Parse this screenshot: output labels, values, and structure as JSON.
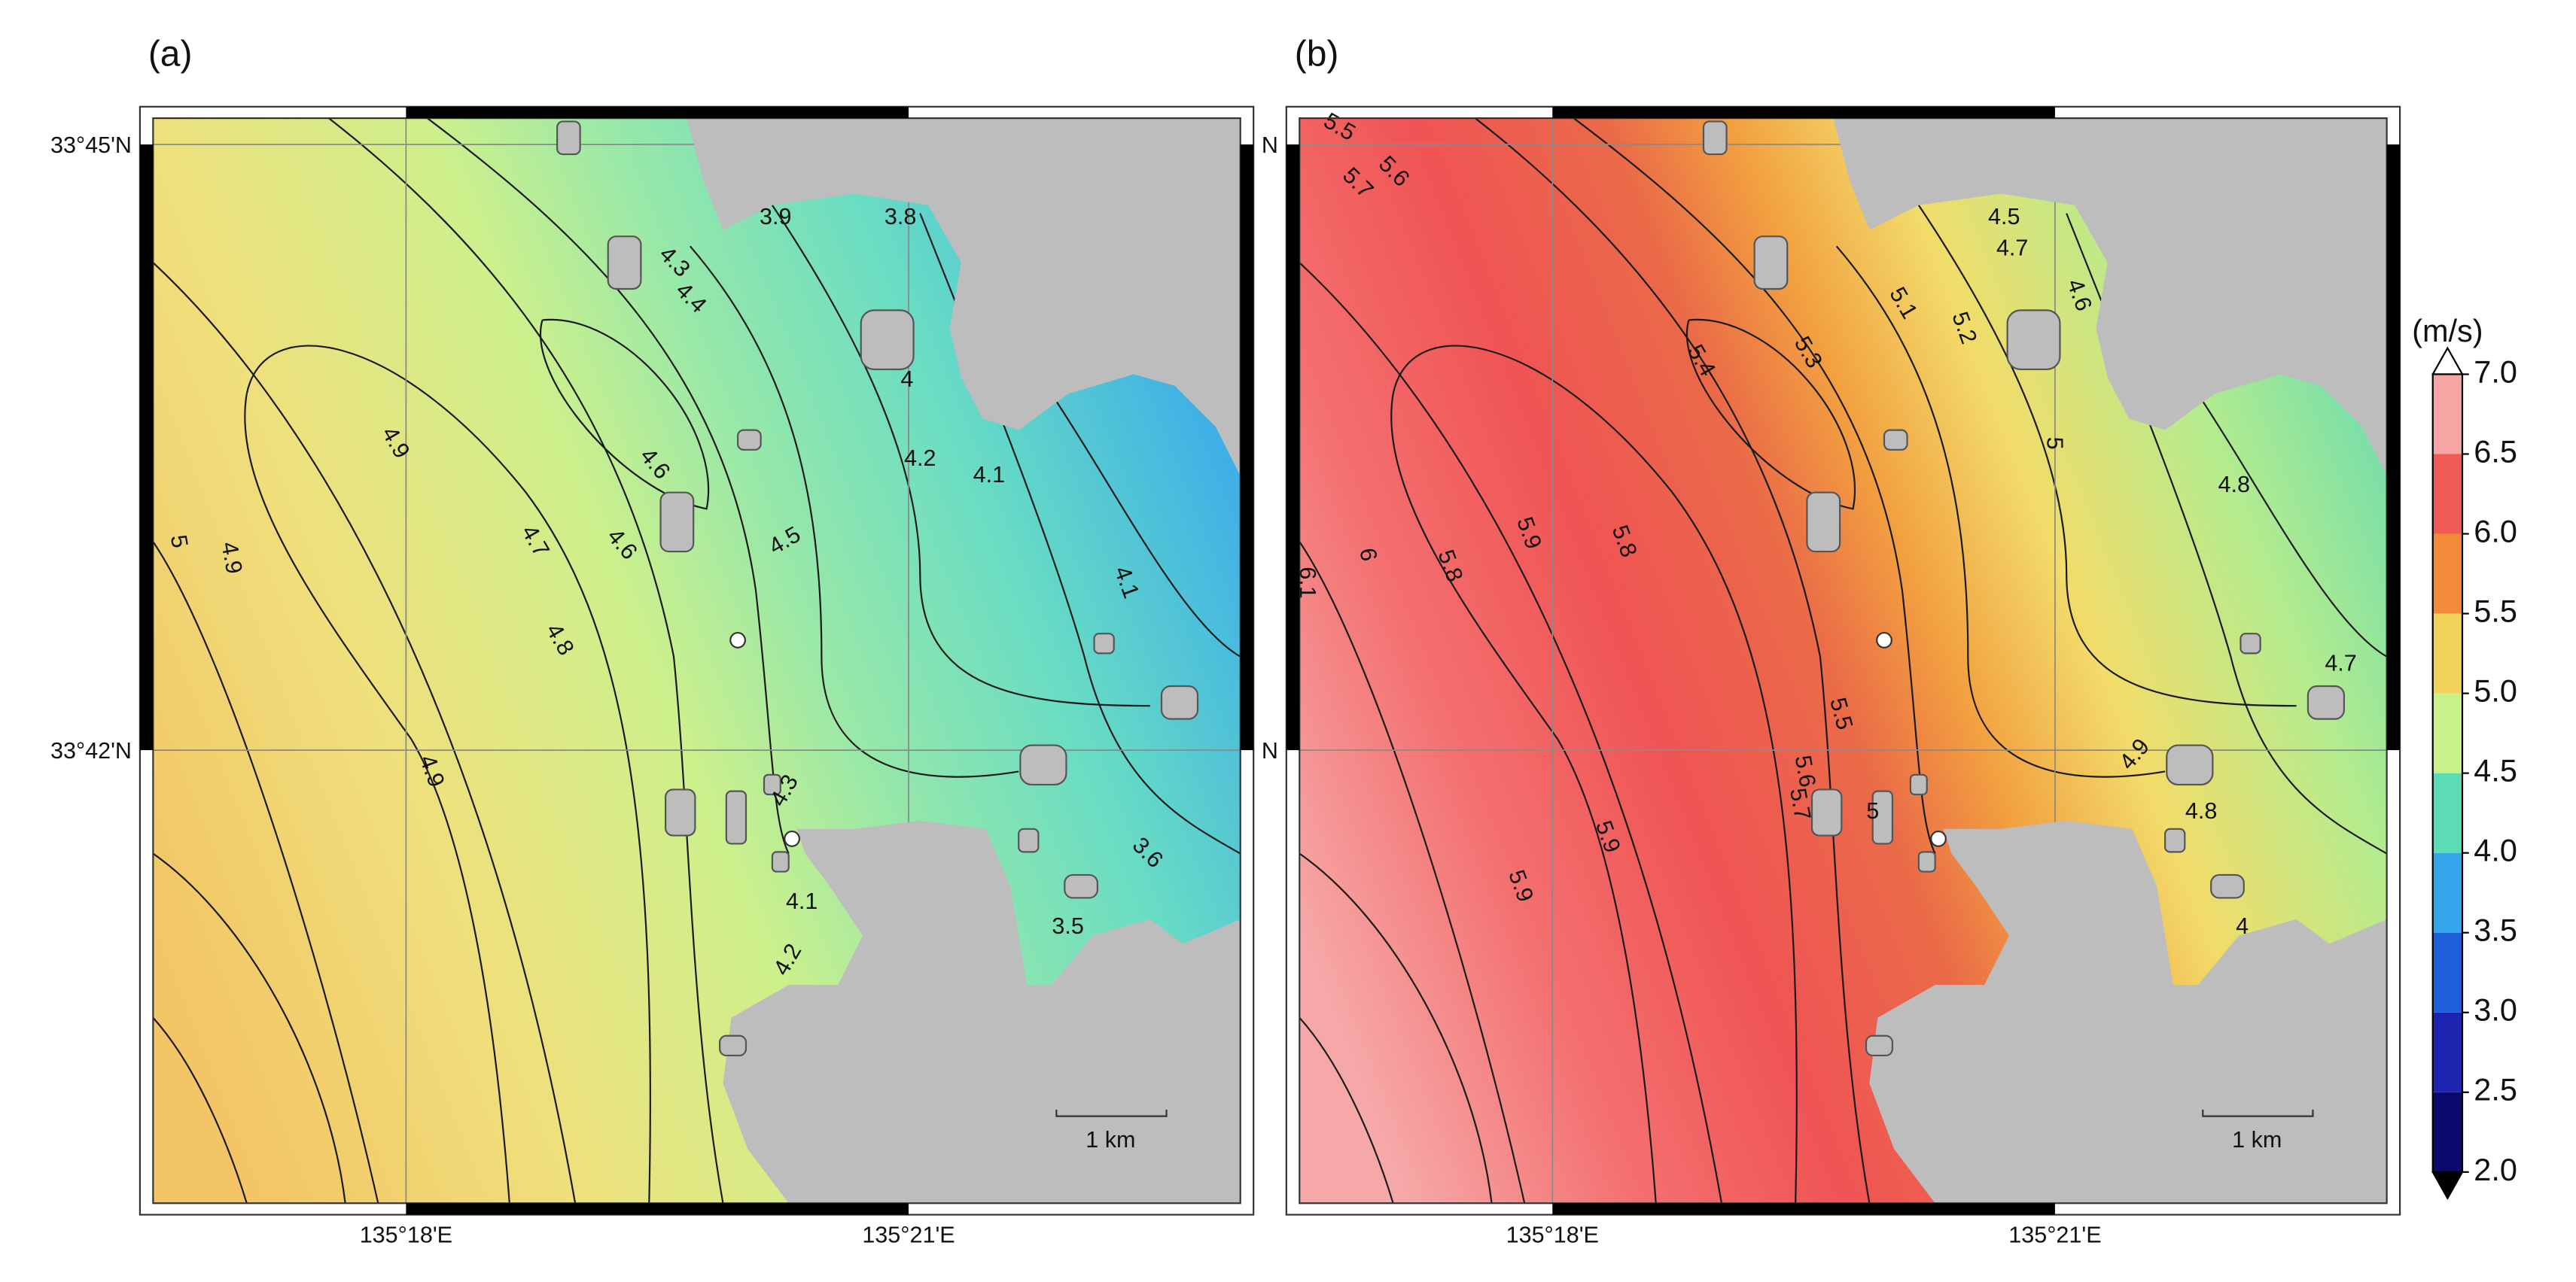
{
  "panels": [
    {
      "label": "(a)",
      "lat_labels": [
        "33°45'N",
        "33°42'N"
      ],
      "lon_labels": [
        "135°18'E",
        "135°21'E"
      ],
      "contour_labels": [
        "3.9",
        "3.8",
        "4.3",
        "4.4",
        "4",
        "4.9",
        "4.6",
        "4.2",
        "4.1",
        "5",
        "4.9",
        "4.7",
        "4.6",
        "4.5",
        "4.1",
        "4.8",
        "4.9",
        "4.3",
        "4.1",
        "4.2",
        "3.5",
        "3.6"
      ],
      "scale_bar": "1 km"
    },
    {
      "label": "(b)",
      "lat_labels": [
        "N",
        "N"
      ],
      "lon_labels": [
        "135°18'E",
        "135°21'E"
      ],
      "contour_labels": [
        "5.5",
        "5.6",
        "5.7",
        "4.5",
        "4.7",
        "4.6",
        "5.1",
        "5.2",
        "5.3",
        "5.4",
        "5",
        "4.8",
        "6.1",
        "6",
        "5.8",
        "5.9",
        "5.8",
        "5.5",
        "4.9",
        "4.7",
        "5.6",
        "5.7",
        "5.9",
        "5.9",
        "4.8",
        "5",
        "4"
      ],
      "scale_bar": "1 km"
    }
  ],
  "colorbar": {
    "title": "(m/s)",
    "lim": [
      2,
      7
    ],
    "ticks": [
      {
        "value": 2,
        "label": "2.0"
      },
      {
        "value": 2.5,
        "label": "2.5"
      },
      {
        "value": 3,
        "label": "3.0"
      },
      {
        "value": 3.5,
        "label": "3.5"
      },
      {
        "value": 4,
        "label": "4.0"
      },
      {
        "value": 4.5,
        "label": "4.5"
      },
      {
        "value": 5,
        "label": "5.0"
      },
      {
        "value": 5.5,
        "label": "5.5"
      },
      {
        "value": 6,
        "label": "6.0"
      },
      {
        "value": 6.5,
        "label": "6.5"
      },
      {
        "value": 7,
        "label": "7.0"
      }
    ],
    "colors": [
      "#0b0b6e",
      "#1c24b0",
      "#1f5fdc",
      "#34a6ec",
      "#5cdcb4",
      "#c9f28a",
      "#f3d35a",
      "#f28a3a",
      "#f25a55",
      "#f7a4a4"
    ],
    "extend": "both"
  }
}
